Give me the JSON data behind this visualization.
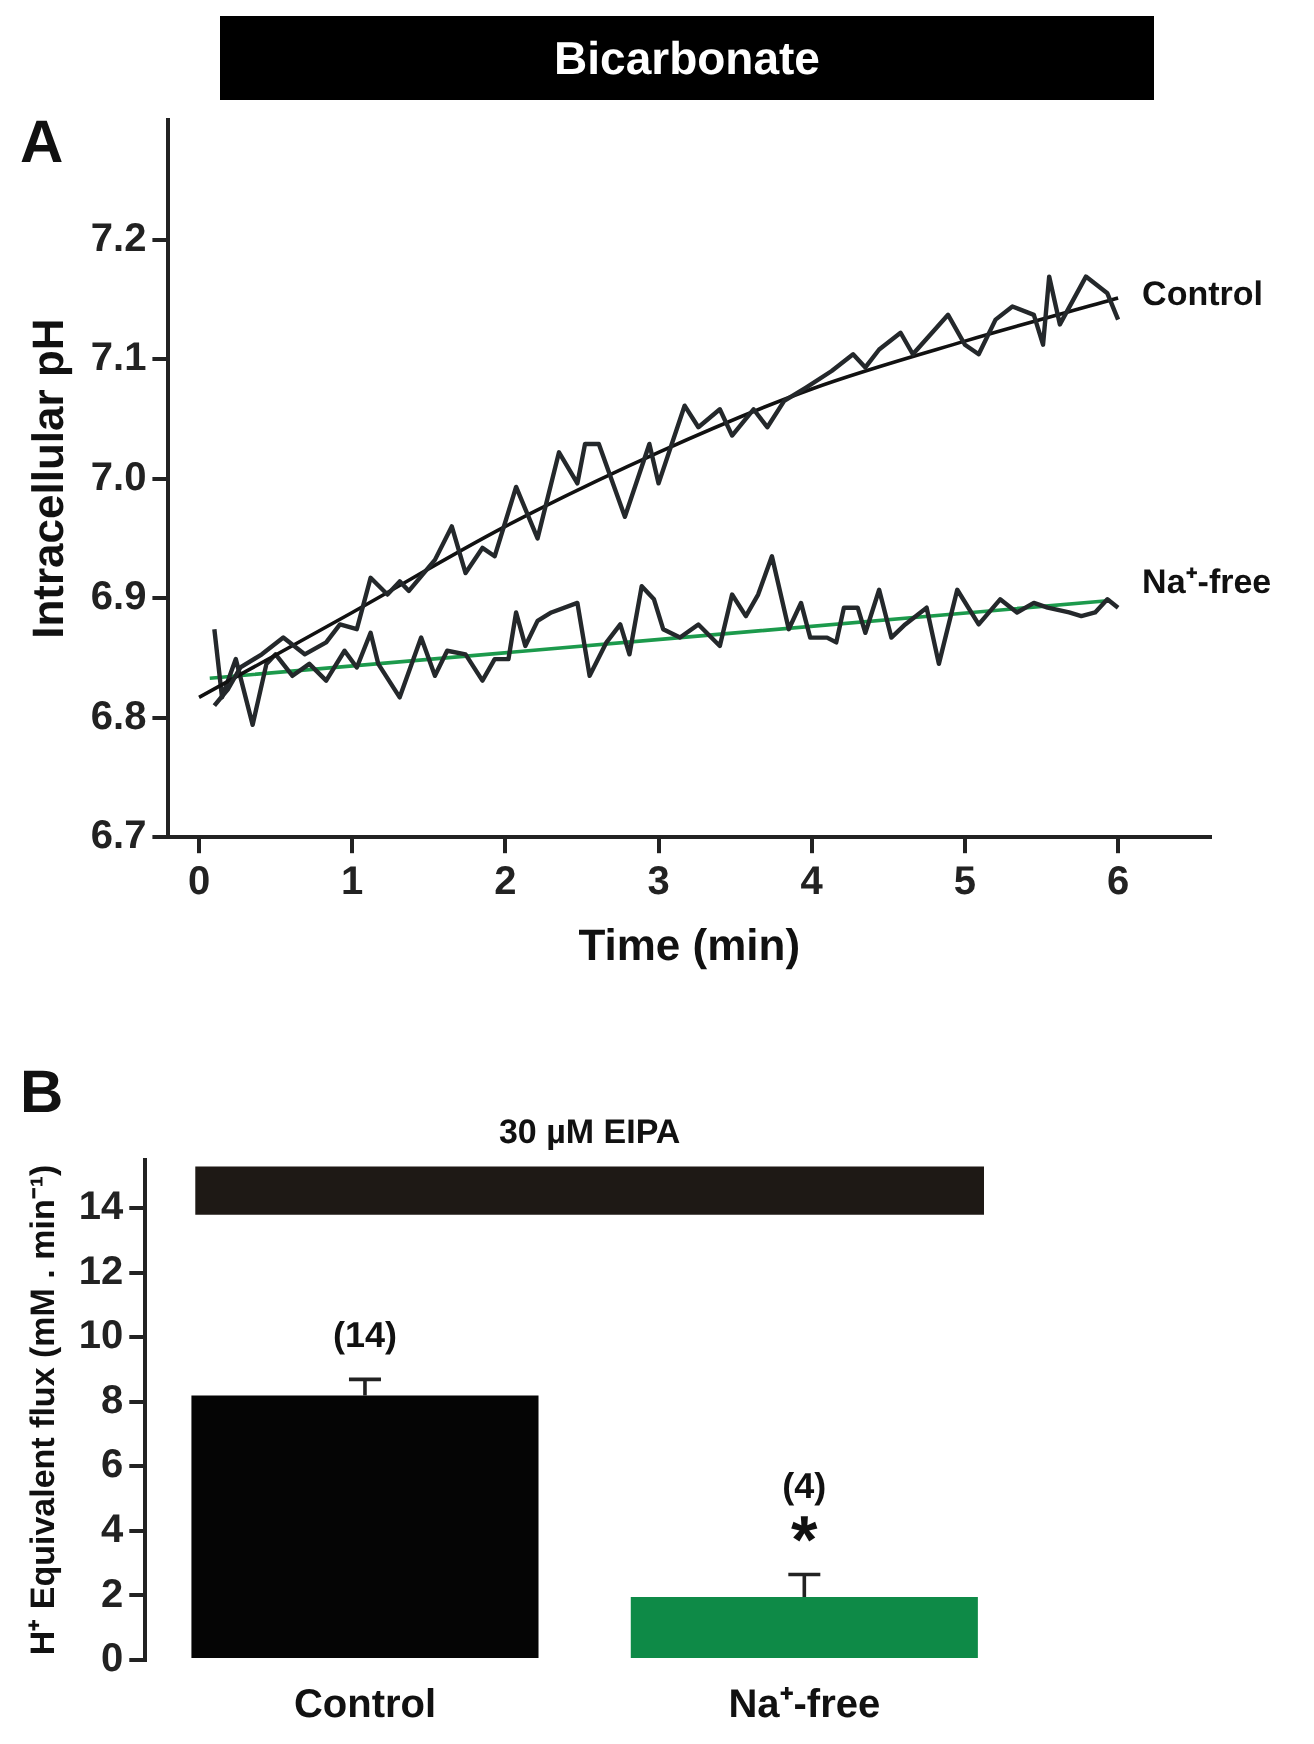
{
  "chart_data": [
    {
      "type": "line",
      "title": "A",
      "xlabel": "Time (min)",
      "ylabel": "Intracellular pH",
      "annotations": [
        "Bicarbonate"
      ],
      "xlim": [
        -0.2,
        6.6
      ],
      "xticks": [
        0,
        1,
        2,
        3,
        4,
        5,
        6
      ],
      "ylim": [
        6.7,
        7.3
      ],
      "yticks": [
        6.7,
        6.8,
        6.9,
        {
          "value": 7,
          "label": "7.0"
        },
        7.1,
        7.2
      ],
      "grid": false,
      "legend": false,
      "series": [
        {
          "name": "Control",
          "color": "#24282b",
          "x": [
            0.1,
            0.19,
            0.27,
            0.41,
            0.55,
            0.69,
            0.83,
            0.92,
            1.03,
            1.12,
            1.23,
            1.31,
            1.37,
            1.54,
            1.65,
            1.74,
            1.85,
            1.93,
            2.07,
            2.21,
            2.35,
            2.47,
            2.52,
            2.61,
            2.78,
            2.94,
            3.0,
            3.17,
            3.26,
            3.4,
            3.48,
            3.62,
            3.71,
            3.82,
            3.96,
            4.13,
            4.27,
            4.35,
            4.44,
            4.58,
            4.66,
            4.89,
            5.0,
            5.09,
            5.2,
            5.31,
            5.45,
            5.51,
            5.55,
            5.62,
            5.79,
            5.93,
            6.0
          ],
          "values": [
            6.81,
            6.824,
            6.842,
            6.853,
            6.867,
            6.853,
            6.863,
            6.878,
            6.874,
            6.917,
            6.903,
            6.914,
            6.906,
            6.932,
            6.96,
            6.921,
            6.942,
            6.935,
            6.993,
            6.95,
            7.022,
            6.996,
            7.029,
            7.029,
            6.968,
            7.029,
            6.996,
            7.061,
            7.043,
            7.058,
            7.036,
            7.058,
            7.043,
            7.065,
            7.076,
            7.09,
            7.104,
            7.093,
            7.108,
            7.122,
            7.104,
            7.137,
            7.112,
            7.104,
            7.133,
            7.144,
            7.137,
            7.112,
            7.169,
            7.129,
            7.169,
            7.155,
            7.133
          ]
        },
        {
          "color": "#111111",
          "x": [
            0,
            1,
            2,
            3,
            4,
            5,
            6
          ],
          "values": [
            6.817,
            6.888,
            6.96,
            7.022,
            7.075,
            7.115,
            7.151
          ]
        },
        {
          "name": "Na⁺-free",
          "color": "#24282b",
          "x": [
            0.1,
            0.15,
            0.24,
            0.35,
            0.44,
            0.5,
            0.61,
            0.72,
            0.83,
            0.95,
            1.03,
            1.12,
            1.17,
            1.31,
            1.45,
            1.54,
            1.62,
            1.74,
            1.85,
            1.93,
            2.02,
            2.07,
            2.13,
            2.21,
            2.3,
            2.47,
            2.55,
            2.66,
            2.75,
            2.81,
            2.89,
            2.97,
            3.03,
            3.14,
            3.26,
            3.4,
            3.48,
            3.57,
            3.65,
            3.74,
            3.85,
            3.93,
            3.99,
            4.1,
            4.16,
            4.21,
            4.3,
            4.35,
            4.44,
            4.52,
            4.61,
            4.75,
            4.83,
            4.95,
            5.09,
            5.23,
            5.34,
            5.45,
            5.54,
            5.68,
            5.76,
            5.85,
            5.93,
            6.0
          ],
          "values": [
            6.874,
            6.817,
            6.849,
            6.794,
            6.845,
            6.853,
            6.835,
            6.845,
            6.831,
            6.856,
            6.842,
            6.871,
            6.845,
            6.817,
            6.867,
            6.835,
            6.856,
            6.853,
            6.831,
            6.849,
            6.849,
            6.888,
            6.86,
            6.881,
            6.888,
            6.896,
            6.835,
            6.863,
            6.878,
            6.853,
            6.91,
            6.899,
            6.874,
            6.867,
            6.878,
            6.86,
            6.903,
            6.885,
            6.903,
            6.935,
            6.874,
            6.896,
            6.867,
            6.867,
            6.863,
            6.892,
            6.892,
            6.871,
            6.907,
            6.867,
            6.878,
            6.892,
            6.845,
            6.907,
            6.878,
            6.899,
            6.888,
            6.896,
            6.892,
            6.888,
            6.885,
            6.888,
            6.899,
            6.892
          ]
        },
        {
          "color": "#1c9a4c",
          "x": [
            0.07,
            5.95
          ],
          "values": [
            6.833,
            6.898
          ]
        }
      ]
    },
    {
      "type": "bar",
      "title": "B",
      "ylabel": "H⁺ Equivalent flux (mM . min⁻¹)",
      "categories": [
        "Control",
        "Na⁺-free"
      ],
      "values": [
        8.2,
        1.95
      ],
      "colors": [
        "#050505",
        "#0e8a47"
      ],
      "errors": [
        [
          8.2,
          8.7
        ],
        [
          1.95,
          2.65
        ]
      ],
      "ylim": [
        0,
        15.5
      ],
      "yticks": [
        0,
        2,
        4,
        6,
        8,
        10,
        12,
        14
      ],
      "grid": false,
      "legend": false,
      "bands": [
        {
          "axis": "y",
          "from": 13.8,
          "to": 15.3,
          "label": "30 µM EIPA",
          "color": "#1e1915"
        }
      ],
      "annotations": [
        "(14)",
        "(4)",
        "*"
      ]
    }
  ]
}
